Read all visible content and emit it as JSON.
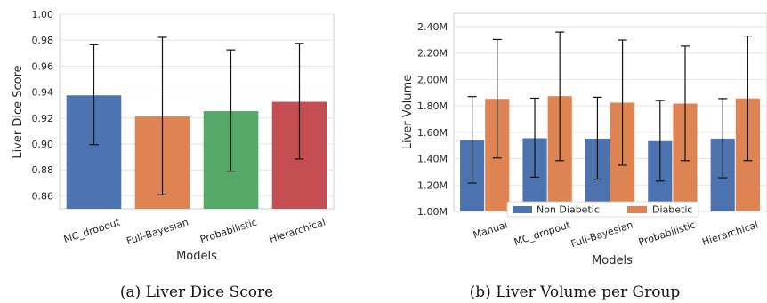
{
  "chart_data": [
    {
      "type": "bar",
      "caption": "(a) Liver Dice Score",
      "xlabel": "Models",
      "ylabel": "Liver Dice Score",
      "ylim": [
        0.85,
        1.0
      ],
      "yticks": [
        "0.86",
        "0.88",
        "0.90",
        "0.92",
        "0.94",
        "0.96",
        "0.98",
        "1.00"
      ],
      "ytick_values": [
        0.86,
        0.88,
        0.9,
        0.92,
        0.94,
        0.96,
        0.98,
        1.0
      ],
      "categories": [
        "MC_dropout",
        "Full-Bayesian",
        "Probabilistic",
        "Hierarchical"
      ],
      "values": [
        0.9375,
        0.9212,
        0.9253,
        0.9325
      ],
      "err_low": [
        0.8995,
        0.8608,
        0.879,
        0.8884
      ],
      "err_high": [
        0.9765,
        0.9822,
        0.9725,
        0.9775
      ],
      "colors": [
        "#4c72b0",
        "#dd8452",
        "#55a868",
        "#c44e52"
      ],
      "grid": true
    },
    {
      "type": "bar",
      "caption": "(b) Liver Volume per Group",
      "xlabel": "Models",
      "ylabel": "Liver Volume",
      "ylim": [
        1.0,
        2.5
      ],
      "yticks": [
        "1.00M",
        "1.20M",
        "1.40M",
        "1.60M",
        "1.80M",
        "2.00M",
        "2.20M",
        "2.40M"
      ],
      "ytick_values": [
        1.0,
        1.2,
        1.4,
        1.6,
        1.8,
        2.0,
        2.2,
        2.4
      ],
      "categories": [
        "Manual",
        "MC_dropout",
        "Full-Bayesian",
        "Probabilistic",
        "Hierarchical"
      ],
      "series": [
        {
          "name": "Non Diabetic",
          "color": "#4c72b0",
          "values": [
            1.54,
            1.555,
            1.552,
            1.533,
            1.552
          ],
          "err_low": [
            1.215,
            1.26,
            1.245,
            1.23,
            1.255
          ],
          "err_high": [
            1.87,
            1.858,
            1.865,
            1.84,
            1.855
          ]
        },
        {
          "name": "Diabetic",
          "color": "#dd8452",
          "values": [
            1.853,
            1.873,
            1.824,
            1.817,
            1.856
          ],
          "err_low": [
            1.405,
            1.385,
            1.35,
            1.385,
            1.385
          ],
          "err_high": [
            2.302,
            2.358,
            2.298,
            2.252,
            2.328
          ]
        }
      ],
      "legend_position": "bottom-right",
      "grid": true
    }
  ]
}
